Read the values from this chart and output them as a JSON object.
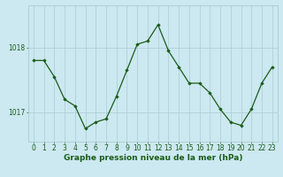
{
  "x": [
    0,
    1,
    2,
    3,
    4,
    5,
    6,
    7,
    8,
    9,
    10,
    11,
    12,
    13,
    14,
    15,
    16,
    17,
    18,
    19,
    20,
    21,
    22,
    23
  ],
  "y": [
    1017.8,
    1017.8,
    1017.55,
    1017.2,
    1017.1,
    1016.75,
    1016.85,
    1016.9,
    1017.25,
    1017.65,
    1018.05,
    1018.1,
    1018.35,
    1017.95,
    1017.7,
    1017.45,
    1017.45,
    1017.3,
    1017.05,
    1016.85,
    1016.8,
    1017.05,
    1017.45,
    1017.7
  ],
  "line_color": "#1a5c1a",
  "marker": "D",
  "marker_size": 1.8,
  "bg_color": "#cce8f0",
  "grid_color": "#aaccd4",
  "yticks": [
    1017,
    1018
  ],
  "ylim": [
    1016.55,
    1018.65
  ],
  "xlim": [
    -0.5,
    23.5
  ],
  "xlabel": "Graphe pression niveau de la mer (hPa)",
  "xlabel_fontsize": 6.5,
  "tick_fontsize": 5.5,
  "tick_color": "#1a5c1a",
  "label_color": "#1a5c1a",
  "linewidth": 0.9
}
